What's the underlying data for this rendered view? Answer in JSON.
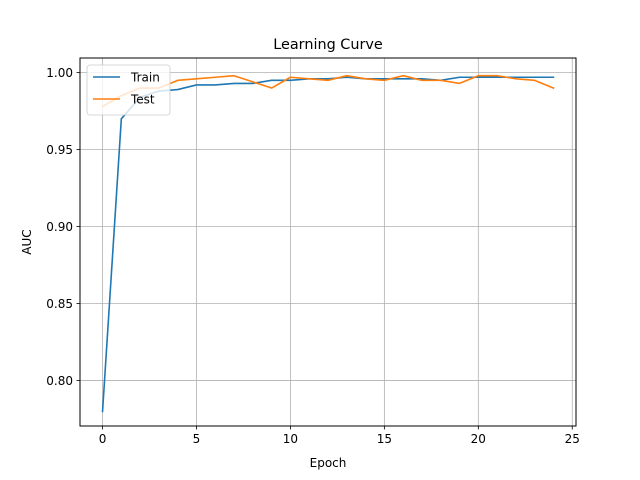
{
  "chart_data": {
    "type": "line",
    "title": "Learning Curve",
    "xlabel": "Epoch",
    "ylabel": "AUC",
    "xlim": [
      -1.2,
      25.2
    ],
    "ylim": [
      0.7705,
      1.0095
    ],
    "xticks": [
      0,
      5,
      10,
      15,
      20,
      25
    ],
    "xtick_labels": [
      "0",
      "5",
      "10",
      "15",
      "20",
      "25"
    ],
    "yticks": [
      0.8,
      0.85,
      0.9,
      0.95,
      1.0
    ],
    "ytick_labels": [
      "0.80",
      "0.85",
      "0.90",
      "0.95",
      "1.00"
    ],
    "grid": true,
    "legend_position": "upper-left",
    "x": [
      0,
      1,
      2,
      3,
      4,
      5,
      6,
      7,
      8,
      9,
      10,
      11,
      12,
      13,
      14,
      15,
      16,
      17,
      18,
      19,
      20,
      21,
      22,
      23,
      24
    ],
    "series": [
      {
        "name": "Train",
        "color": "#1f77b4",
        "values": [
          0.78,
          0.97,
          0.984,
          0.988,
          0.989,
          0.992,
          0.992,
          0.993,
          0.993,
          0.995,
          0.995,
          0.996,
          0.996,
          0.997,
          0.996,
          0.996,
          0.996,
          0.996,
          0.995,
          0.997,
          0.997,
          0.997,
          0.997,
          0.997,
          0.997
        ]
      },
      {
        "name": "Test",
        "color": "#ff7f0e",
        "values": [
          0.978,
          0.985,
          0.99,
          0.99,
          0.995,
          0.996,
          0.997,
          0.998,
          0.994,
          0.99,
          0.997,
          0.996,
          0.995,
          0.998,
          0.996,
          0.995,
          0.998,
          0.995,
          0.995,
          0.993,
          0.998,
          0.998,
          0.996,
          0.995,
          0.99
        ]
      }
    ]
  }
}
